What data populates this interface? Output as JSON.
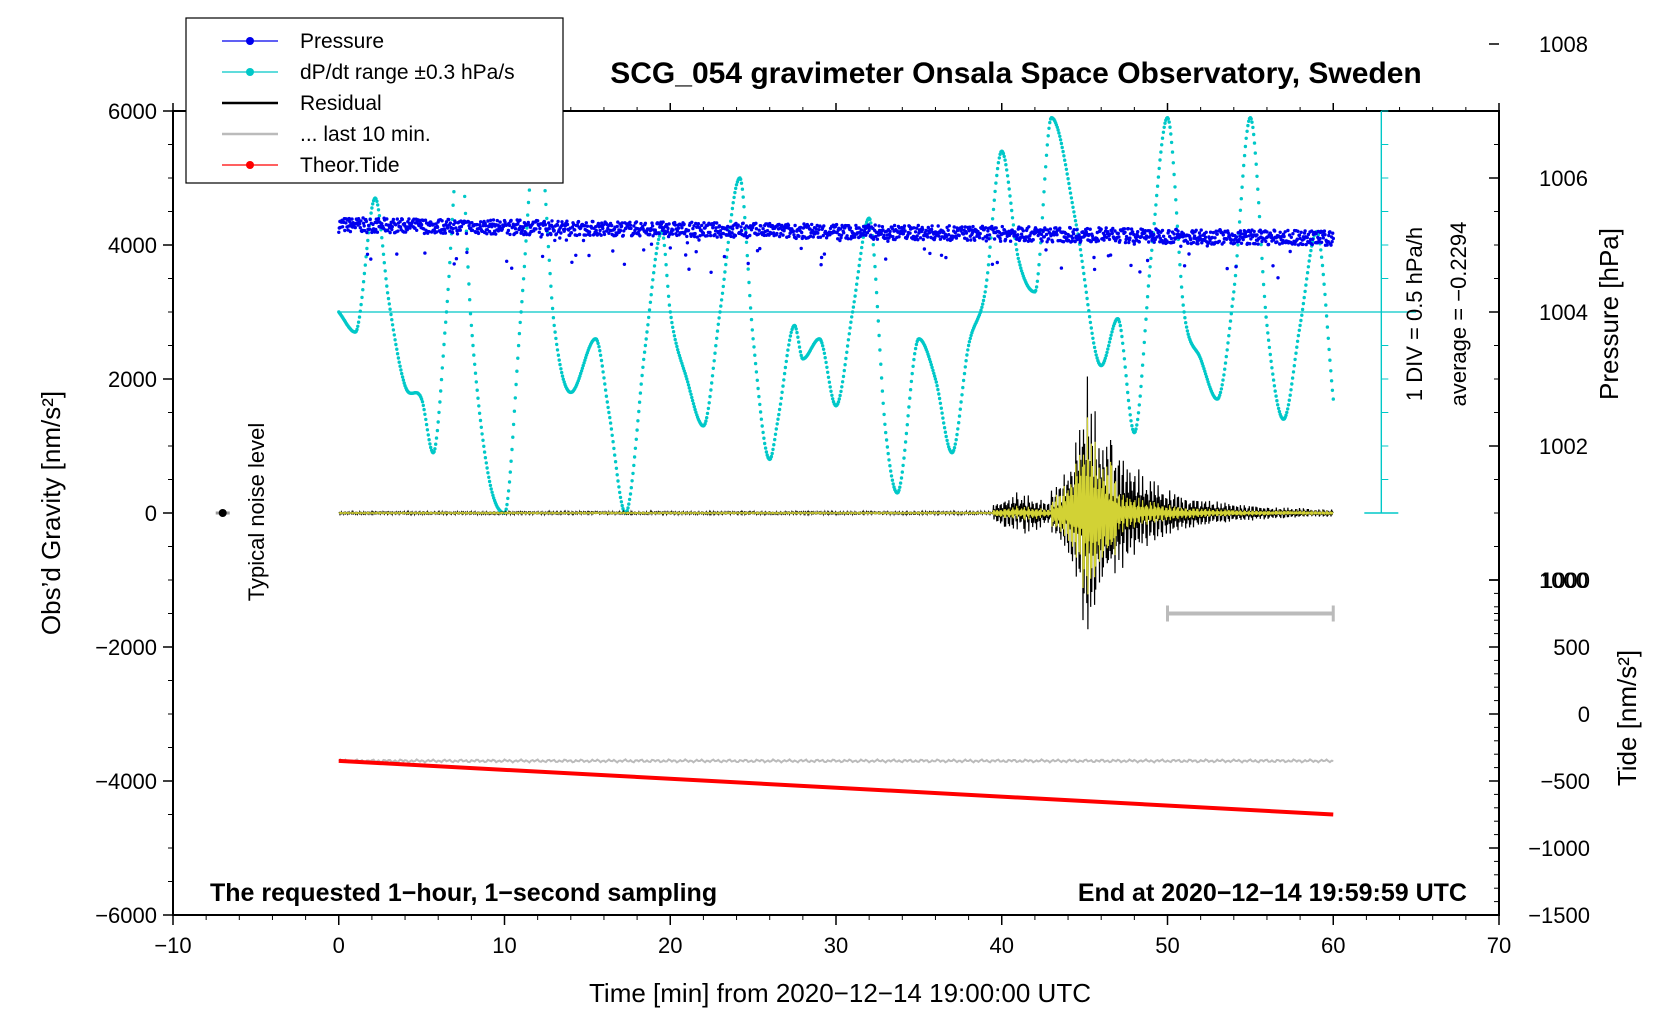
{
  "chart_data": {
    "type": "line",
    "title": "SCG_054 gravimeter Onsala Space Observatory, Sweden",
    "xlabel": "Time [min] from 2020−12−14 19:00:00 UTC",
    "ylabel_left": "Obs’d Gravity [nm/s²]",
    "ylabel_right_top": "Pressure [hPa]",
    "ylabel_right_bottom": "Tide [nm/s²]",
    "xlim": [
      -10,
      70
    ],
    "ylim": [
      -6000,
      6000
    ],
    "x_ticks": [
      -10,
      0,
      10,
      20,
      30,
      40,
      50,
      60,
      70
    ],
    "x_tick_labels": [
      "−10",
      "0",
      "10",
      "20",
      "30",
      "40",
      "50",
      "60",
      "70"
    ],
    "y_ticks": [
      -6000,
      -4000,
      -2000,
      0,
      2000,
      4000,
      6000
    ],
    "y_tick_labels": [
      "−6000",
      "−4000",
      "−2000",
      "0",
      "2000",
      "4000",
      "6000"
    ],
    "pressure_axis": {
      "ticks": [
        1000,
        1002,
        1004,
        1006,
        1008
      ],
      "tick_labels": [
        "1000",
        "1002",
        "1004",
        "1006",
        "1008"
      ],
      "gravity_per_hpa": 1000,
      "gravity_at_1004": 3000
    },
    "tide_axis": {
      "ticks": [
        -1500,
        -1000,
        -500,
        0,
        500,
        1000
      ],
      "tick_labels": [
        "−1500",
        "−1000",
        "−500",
        "0",
        "500",
        "1000"
      ],
      "gravity_at_tide_zero": -3000,
      "gravity_per_tide_unit": 2
    },
    "dpdt_scale": {
      "label": "1 DIV = 0.5 hPa/h",
      "average_label": "average = −0.2294"
    },
    "legend": [
      {
        "label": "Pressure",
        "color": "#0000ee",
        "marker": true
      },
      {
        "label": "dP/dt range ±0.3 hPa/s",
        "color": "#00c8c8",
        "marker": true
      },
      {
        "label": "Residual",
        "color": "#000000",
        "marker": false
      },
      {
        "label": "... last 10 min.",
        "color": "#bbbbbb",
        "marker": false
      },
      {
        "label": "Theor.Tide",
        "color": "#ff0000",
        "marker": true
      }
    ],
    "noise_label": "Typical noise level",
    "noise_point": {
      "x": -7,
      "y": 0
    },
    "footer_left": "The requested 1−hour, 1−second sampling",
    "footer_right": "End at 2020−12−14 19:59:59 UTC",
    "series": [
      {
        "name": "Pressure",
        "color": "#0000ee",
        "x_range": [
          0,
          60
        ],
        "level_hpa_start": 1005.3,
        "level_hpa_end": 1005.1
      },
      {
        "name": "dP/dt range ±0.3 hPa/s",
        "color": "#00c8c8",
        "x": [
          0,
          1,
          2.2,
          3,
          4,
          5,
          5.7,
          6.5,
          7.3,
          8,
          9,
          10,
          11,
          12,
          13,
          14,
          15.5,
          16.3,
          17.3,
          18.5,
          19.5,
          20,
          21,
          22,
          23,
          24.2,
          25,
          26,
          26.5,
          27.5,
          28,
          29,
          30,
          31,
          32,
          33,
          33.7,
          35,
          36,
          37,
          38,
          39,
          40,
          41,
          42,
          43,
          44.5,
          46,
          47,
          48,
          49,
          50,
          51,
          52,
          53,
          54,
          55,
          56,
          57,
          58,
          59,
          60
        ],
        "y": [
          3000,
          2700,
          4700,
          3200,
          1900,
          1700,
          900,
          3000,
          5600,
          2800,
          600,
          0,
          3000,
          5900,
          2800,
          1800,
          2600,
          1500,
          0,
          2500,
          4200,
          3000,
          2000,
          1300,
          3000,
          5000,
          2600,
          800,
          1400,
          2800,
          2300,
          2600,
          1600,
          3000,
          4400,
          1200,
          300,
          2600,
          2000,
          900,
          2500,
          3300,
          5400,
          3800,
          3300,
          5900,
          4300,
          2200,
          2900,
          1200,
          3800,
          5900,
          3000,
          2300,
          1700,
          3300,
          5900,
          2800,
          1400,
          2800,
          4200,
          1700
        ]
      },
      {
        "name": "Residual",
        "color": "#000000",
        "x_range": [
          0,
          60
        ],
        "event_start_min": 39.5,
        "peak_min": 45,
        "peak_nm_s2": 2000,
        "trough_nm_s2": -2100
      },
      {
        "name": "... last 10 min.",
        "color": "#bbbbbb",
        "x_range": [
          0,
          60
        ],
        "offset_nm_s2": -3700,
        "bar_x": [
          50,
          60
        ],
        "bar_y": -1500
      },
      {
        "name": "Theor.Tide",
        "color": "#ff0000",
        "x": [
          0,
          60
        ],
        "tide_nm_s2": [
          -350,
          -750
        ]
      }
    ]
  }
}
